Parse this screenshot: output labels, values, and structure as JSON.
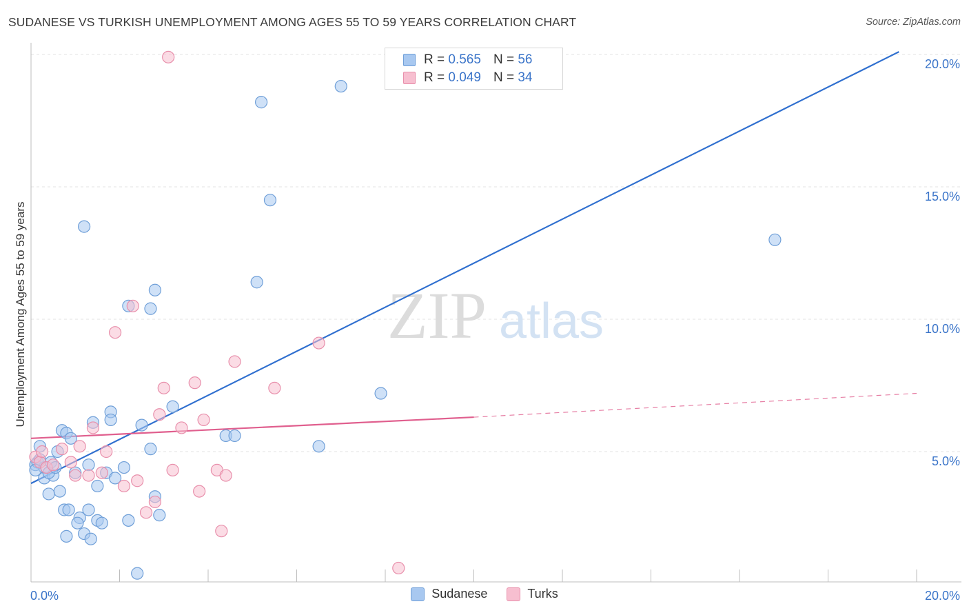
{
  "header": {
    "title": "SUDANESE VS TURKISH UNEMPLOYMENT AMONG AGES 55 TO 59 YEARS CORRELATION CHART",
    "source": "Source: ZipAtlas.com"
  },
  "watermark": {
    "zip": "ZIP",
    "atlas": "atlas"
  },
  "legend": {
    "items": [
      {
        "r_label": "R =",
        "r_value": "0.565",
        "n_label": "N =",
        "n_value": "56",
        "color": "#a8c8f0",
        "edge": "#6f9fd8"
      },
      {
        "r_label": "R =",
        "r_value": "0.049",
        "n_label": "N =",
        "n_value": "34",
        "color": "#f7bfd0",
        "edge": "#e88fab"
      }
    ]
  },
  "bottom_legend": {
    "sudanese": "Sudanese",
    "turks": "Turks"
  },
  "chart_data": {
    "type": "scatter",
    "title": "SUDANESE VS TURKISH UNEMPLOYMENT AMONG AGES 55 TO 59 YEARS CORRELATION CHART",
    "xlabel": "",
    "ylabel": "Unemployment Among Ages 55 to 59 years",
    "xlim": [
      0,
      20
    ],
    "ylim": [
      0,
      20.5
    ],
    "x_tick_labels": [
      {
        "value": 0,
        "label": "0.0%"
      },
      {
        "value": 20,
        "label": "20.0%"
      }
    ],
    "y_tick_labels": [
      {
        "value": 5,
        "label": "5.0%"
      },
      {
        "value": 10,
        "label": "10.0%"
      },
      {
        "value": 15,
        "label": "15.0%"
      },
      {
        "value": 20,
        "label": "20.0%"
      }
    ],
    "grid": true,
    "series": [
      {
        "name": "Sudanese",
        "color": "#a8c8f0",
        "edge": "#6f9fd8",
        "trend": {
          "color": "#2f6fcf",
          "x": [
            0,
            19.6
          ],
          "y": [
            3.8,
            20.1
          ],
          "dashed_from": null
        },
        "points": [
          [
            0.1,
            4.5
          ],
          [
            0.2,
            5.2
          ],
          [
            0.15,
            4.6
          ],
          [
            0.3,
            4.4
          ],
          [
            0.3,
            4.0
          ],
          [
            0.5,
            4.1
          ],
          [
            0.4,
            4.2
          ],
          [
            0.45,
            4.6
          ],
          [
            0.6,
            5.0
          ],
          [
            0.7,
            5.8
          ],
          [
            0.8,
            5.7
          ],
          [
            0.9,
            5.5
          ],
          [
            0.65,
            3.5
          ],
          [
            0.4,
            3.4
          ],
          [
            0.75,
            2.8
          ],
          [
            0.85,
            2.8
          ],
          [
            1.1,
            2.5
          ],
          [
            1.05,
            2.3
          ],
          [
            1.2,
            1.9
          ],
          [
            0.8,
            1.8
          ],
          [
            1.35,
            1.7
          ],
          [
            1.3,
            2.8
          ],
          [
            1.5,
            2.4
          ],
          [
            1.6,
            2.3
          ],
          [
            1.5,
            3.7
          ],
          [
            1.7,
            4.2
          ],
          [
            1.9,
            4.0
          ],
          [
            2.1,
            4.4
          ],
          [
            1.4,
            6.1
          ],
          [
            1.8,
            6.5
          ],
          [
            1.8,
            6.2
          ],
          [
            2.5,
            6.0
          ],
          [
            2.7,
            5.1
          ],
          [
            2.8,
            3.3
          ],
          [
            2.9,
            2.6
          ],
          [
            2.2,
            2.4
          ],
          [
            2.4,
            0.4
          ],
          [
            3.2,
            6.7
          ],
          [
            4.4,
            5.6
          ],
          [
            4.6,
            5.6
          ],
          [
            5.1,
            11.4
          ],
          [
            5.2,
            18.2
          ],
          [
            5.4,
            14.5
          ],
          [
            6.5,
            5.2
          ],
          [
            7.0,
            18.8
          ],
          [
            7.9,
            7.2
          ],
          [
            2.2,
            10.5
          ],
          [
            2.7,
            10.4
          ],
          [
            2.8,
            11.1
          ],
          [
            1.2,
            13.5
          ],
          [
            16.8,
            13.0
          ],
          [
            1.3,
            4.5
          ],
          [
            1.0,
            4.2
          ],
          [
            0.2,
            4.7
          ],
          [
            0.55,
            4.4
          ],
          [
            0.1,
            4.3
          ]
        ]
      },
      {
        "name": "Turks",
        "color": "#f7bfd0",
        "edge": "#e88fab",
        "trend": {
          "color": "#e05f8e",
          "x": [
            0,
            10
          ],
          "y": [
            5.5,
            6.3
          ],
          "dashed_from": 10,
          "dashed_to": [
            20,
            7.2
          ]
        },
        "points": [
          [
            0.1,
            4.8
          ],
          [
            0.2,
            4.6
          ],
          [
            0.25,
            5.0
          ],
          [
            0.35,
            4.4
          ],
          [
            0.5,
            4.5
          ],
          [
            0.7,
            5.1
          ],
          [
            0.9,
            4.6
          ],
          [
            1.0,
            4.1
          ],
          [
            1.1,
            5.2
          ],
          [
            1.3,
            4.1
          ],
          [
            1.4,
            5.9
          ],
          [
            1.6,
            4.2
          ],
          [
            1.7,
            5.0
          ],
          [
            1.9,
            9.5
          ],
          [
            2.1,
            3.7
          ],
          [
            2.4,
            3.9
          ],
          [
            2.6,
            2.7
          ],
          [
            2.8,
            3.1
          ],
          [
            2.9,
            6.4
          ],
          [
            3.0,
            7.4
          ],
          [
            3.2,
            4.3
          ],
          [
            3.4,
            5.9
          ],
          [
            3.7,
            7.6
          ],
          [
            3.8,
            3.5
          ],
          [
            3.9,
            6.2
          ],
          [
            4.2,
            4.3
          ],
          [
            4.3,
            2.0
          ],
          [
            4.4,
            4.1
          ],
          [
            4.6,
            8.4
          ],
          [
            5.5,
            7.4
          ],
          [
            6.5,
            9.1
          ],
          [
            8.3,
            0.6
          ],
          [
            3.1,
            19.9
          ],
          [
            2.3,
            10.5
          ]
        ]
      }
    ]
  }
}
